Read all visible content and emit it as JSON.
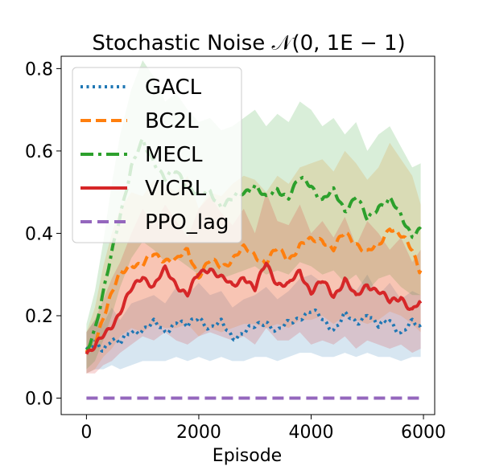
{
  "chart_data": {
    "type": "line",
    "title": "Stochastic Noise 𝒩(0, 1E − 1)",
    "xlabel": "Episode",
    "ylabel": "",
    "xlim": [
      -450,
      6200
    ],
    "ylim": [
      -0.04,
      0.83
    ],
    "xticks": [
      0,
      2000,
      4000,
      6000
    ],
    "xtick_labels": [
      "0",
      "2000",
      "4000",
      "6000"
    ],
    "yticks": [
      0.0,
      0.2,
      0.4,
      0.6,
      0.8
    ],
    "ytick_labels": [
      "0.0",
      "0.2",
      "0.4",
      "0.6",
      "0.8"
    ],
    "legend_position": "upper-left",
    "series": [
      {
        "name": "GACL",
        "color": "#1f77b4",
        "style": "dotted",
        "x": [
          0,
          150,
          300,
          450,
          600,
          800,
          1000,
          1200,
          1400,
          1600,
          1800,
          2000,
          2200,
          2400,
          2600,
          2800,
          3000,
          3200,
          3400,
          3600,
          3800,
          4000,
          4200,
          4400,
          4600,
          4800,
          5000,
          5200,
          5400,
          5600,
          5800,
          5950
        ],
        "y": [
          0.11,
          0.13,
          0.12,
          0.15,
          0.13,
          0.16,
          0.17,
          0.18,
          0.16,
          0.19,
          0.17,
          0.2,
          0.17,
          0.18,
          0.15,
          0.16,
          0.17,
          0.19,
          0.16,
          0.18,
          0.2,
          0.21,
          0.19,
          0.17,
          0.2,
          0.18,
          0.21,
          0.17,
          0.19,
          0.16,
          0.18,
          0.17
        ],
        "band_low": [
          0.06,
          0.07,
          0.07,
          0.08,
          0.07,
          0.08,
          0.09,
          0.09,
          0.09,
          0.1,
          0.09,
          0.1,
          0.09,
          0.1,
          0.09,
          0.09,
          0.1,
          0.1,
          0.09,
          0.1,
          0.11,
          0.11,
          0.1,
          0.1,
          0.11,
          0.1,
          0.11,
          0.1,
          0.1,
          0.09,
          0.1,
          0.1
        ],
        "band_high": [
          0.16,
          0.19,
          0.18,
          0.22,
          0.19,
          0.23,
          0.24,
          0.25,
          0.23,
          0.27,
          0.25,
          0.28,
          0.25,
          0.26,
          0.22,
          0.24,
          0.25,
          0.27,
          0.24,
          0.26,
          0.29,
          0.3,
          0.28,
          0.25,
          0.29,
          0.26,
          0.3,
          0.25,
          0.28,
          0.24,
          0.26,
          0.25
        ]
      },
      {
        "name": "BC2L",
        "color": "#ff7f0e",
        "style": "dashed",
        "x": [
          0,
          150,
          300,
          450,
          600,
          800,
          1000,
          1200,
          1400,
          1600,
          1800,
          2000,
          2200,
          2400,
          2600,
          2800,
          3000,
          3200,
          3400,
          3600,
          3800,
          4000,
          4200,
          4400,
          4600,
          4800,
          5000,
          5200,
          5400,
          5600,
          5800,
          5950
        ],
        "y": [
          0.11,
          0.14,
          0.2,
          0.25,
          0.3,
          0.33,
          0.32,
          0.35,
          0.34,
          0.33,
          0.36,
          0.3,
          0.33,
          0.32,
          0.34,
          0.36,
          0.35,
          0.33,
          0.36,
          0.34,
          0.37,
          0.38,
          0.39,
          0.36,
          0.4,
          0.38,
          0.35,
          0.37,
          0.42,
          0.39,
          0.36,
          0.31
        ],
        "band_low": [
          0.06,
          0.07,
          0.1,
          0.12,
          0.15,
          0.17,
          0.16,
          0.18,
          0.17,
          0.17,
          0.18,
          0.15,
          0.17,
          0.16,
          0.17,
          0.18,
          0.18,
          0.17,
          0.18,
          0.17,
          0.19,
          0.19,
          0.2,
          0.18,
          0.2,
          0.19,
          0.18,
          0.19,
          0.21,
          0.2,
          0.18,
          0.16
        ],
        "band_high": [
          0.16,
          0.22,
          0.32,
          0.4,
          0.46,
          0.5,
          0.49,
          0.53,
          0.52,
          0.5,
          0.54,
          0.46,
          0.5,
          0.49,
          0.52,
          0.54,
          0.53,
          0.5,
          0.54,
          0.52,
          0.56,
          0.57,
          0.58,
          0.55,
          0.6,
          0.57,
          0.53,
          0.56,
          0.62,
          0.58,
          0.54,
          0.47
        ]
      },
      {
        "name": "MECL",
        "color": "#2ca02c",
        "style": "dashdot",
        "x": [
          0,
          150,
          300,
          450,
          600,
          800,
          1000,
          1200,
          1400,
          1600,
          1800,
          2000,
          2200,
          2400,
          2600,
          2800,
          3000,
          3200,
          3400,
          3600,
          3800,
          4000,
          4200,
          4400,
          4600,
          4800,
          5000,
          5200,
          5400,
          5600,
          5800,
          5950
        ],
        "y": [
          0.12,
          0.17,
          0.25,
          0.35,
          0.45,
          0.56,
          0.62,
          0.58,
          0.53,
          0.55,
          0.52,
          0.49,
          0.5,
          0.47,
          0.48,
          0.5,
          0.52,
          0.48,
          0.51,
          0.49,
          0.53,
          0.52,
          0.48,
          0.5,
          0.46,
          0.49,
          0.43,
          0.47,
          0.48,
          0.44,
          0.4,
          0.41
        ],
        "band_low": [
          0.07,
          0.09,
          0.14,
          0.2,
          0.27,
          0.34,
          0.38,
          0.36,
          0.33,
          0.34,
          0.32,
          0.3,
          0.31,
          0.29,
          0.3,
          0.31,
          0.32,
          0.3,
          0.31,
          0.3,
          0.33,
          0.32,
          0.3,
          0.31,
          0.28,
          0.3,
          0.26,
          0.29,
          0.3,
          0.27,
          0.25,
          0.25
        ],
        "band_high": [
          0.18,
          0.26,
          0.38,
          0.52,
          0.64,
          0.75,
          0.82,
          0.78,
          0.72,
          0.74,
          0.7,
          0.67,
          0.68,
          0.65,
          0.66,
          0.68,
          0.7,
          0.66,
          0.69,
          0.67,
          0.72,
          0.7,
          0.66,
          0.68,
          0.64,
          0.67,
          0.6,
          0.64,
          0.66,
          0.61,
          0.56,
          0.57
        ]
      },
      {
        "name": "VICRL",
        "color": "#d62728",
        "style": "solid",
        "x": [
          0,
          150,
          300,
          450,
          600,
          800,
          1000,
          1200,
          1400,
          1600,
          1800,
          2000,
          2200,
          2400,
          2600,
          2800,
          3000,
          3200,
          3400,
          3600,
          3800,
          4000,
          4200,
          4400,
          4600,
          4800,
          5000,
          5200,
          5400,
          5600,
          5800,
          5950
        ],
        "y": [
          0.11,
          0.12,
          0.15,
          0.18,
          0.21,
          0.26,
          0.3,
          0.27,
          0.31,
          0.28,
          0.25,
          0.3,
          0.32,
          0.29,
          0.27,
          0.3,
          0.26,
          0.33,
          0.28,
          0.27,
          0.31,
          0.26,
          0.28,
          0.25,
          0.29,
          0.24,
          0.28,
          0.26,
          0.23,
          0.25,
          0.21,
          0.23
        ],
        "band_low": [
          0.06,
          0.06,
          0.08,
          0.09,
          0.11,
          0.13,
          0.15,
          0.14,
          0.16,
          0.14,
          0.13,
          0.15,
          0.16,
          0.15,
          0.14,
          0.15,
          0.13,
          0.17,
          0.14,
          0.14,
          0.16,
          0.13,
          0.14,
          0.13,
          0.15,
          0.12,
          0.14,
          0.13,
          0.12,
          0.13,
          0.11,
          0.12
        ],
        "band_high": [
          0.16,
          0.19,
          0.24,
          0.29,
          0.33,
          0.4,
          0.46,
          0.42,
          0.47,
          0.43,
          0.39,
          0.46,
          0.49,
          0.45,
          0.42,
          0.46,
          0.4,
          0.5,
          0.43,
          0.42,
          0.47,
          0.4,
          0.43,
          0.39,
          0.44,
          0.37,
          0.43,
          0.4,
          0.36,
          0.39,
          0.33,
          0.36
        ]
      },
      {
        "name": "PPO_lag",
        "color": "#9467bd",
        "style": "longdash",
        "x": [
          0,
          5950
        ],
        "y": [
          0.0,
          0.0
        ]
      }
    ]
  }
}
